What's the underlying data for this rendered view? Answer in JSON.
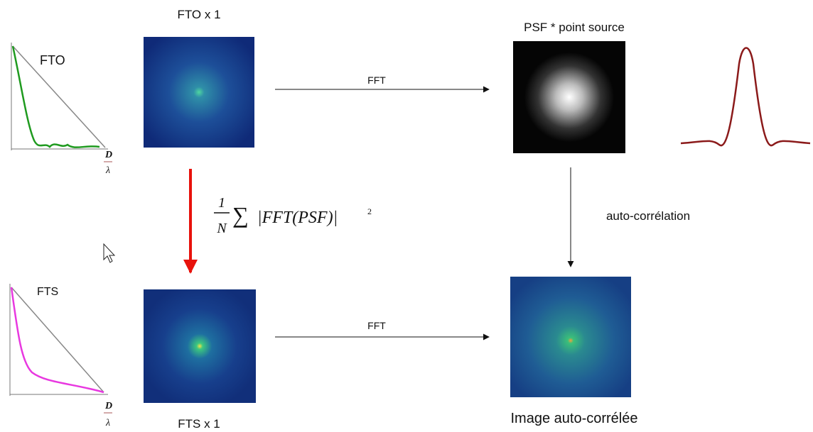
{
  "nodes": [
    {
      "label": "FTO x 1"
    },
    {
      "label": "PSF * point source"
    },
    {
      "label": "FTS x 1"
    },
    {
      "label": "Image auto-corrélée"
    }
  ],
  "edges": [
    {
      "label": "FFT"
    },
    {
      "label": "auto-corrélation"
    },
    {
      "label": "FFT"
    }
  ],
  "formula": {
    "numerator": "1",
    "denominator": "N",
    "operator": "∑",
    "body": "|FFT(PSF)|",
    "exponent": "2"
  },
  "plots": [
    {
      "label": "FTO",
      "axis_numerator": "D",
      "axis_denominator": "λ"
    },
    {
      "label": "FTS",
      "axis_numerator": "D",
      "axis_denominator": "λ"
    }
  ]
}
